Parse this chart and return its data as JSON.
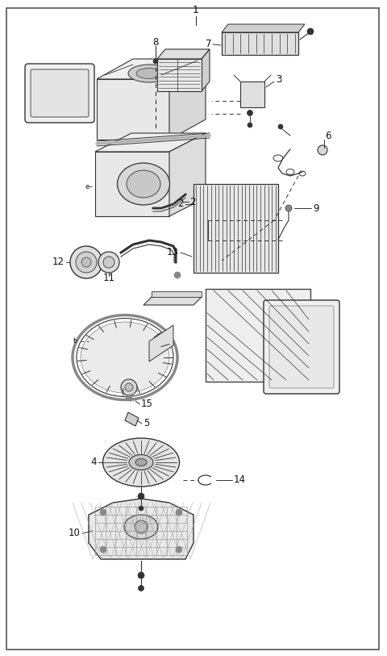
{
  "bg_color": "#ffffff",
  "border_color": "#555555",
  "line_color": "#333333",
  "label_color": "#111111",
  "fig_width": 4.8,
  "fig_height": 8.13,
  "dpi": 100
}
